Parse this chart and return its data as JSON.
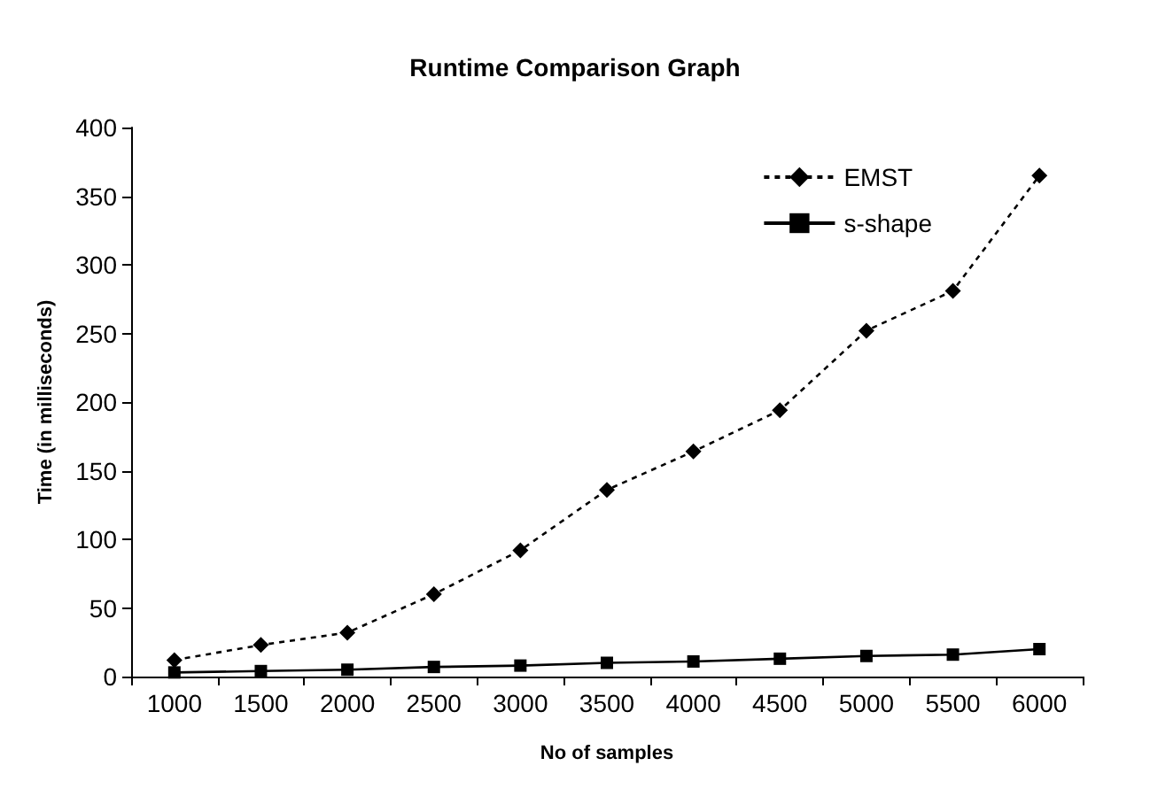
{
  "chart_data": {
    "type": "line",
    "title": "Runtime Comparison Graph",
    "xlabel": "No of samples",
    "ylabel": "Time (in milliseconds)",
    "categories": [
      "1000",
      "1500",
      "2000",
      "2500",
      "3000",
      "3500",
      "4000",
      "4500",
      "5000",
      "5500",
      "6000"
    ],
    "series": [
      {
        "name": "EMST",
        "color": "#000000",
        "marker": "diamond",
        "line_style": "dotted",
        "values": [
          12,
          23,
          32,
          60,
          92,
          136,
          164,
          194,
          252,
          281,
          365
        ]
      },
      {
        "name": "s-shape",
        "color": "#000000",
        "marker": "square",
        "line_style": "solid",
        "values": [
          3,
          4,
          5,
          7,
          8,
          10,
          11,
          13,
          15,
          16,
          20
        ]
      }
    ],
    "ylim": [
      0,
      400
    ],
    "yticks": [
      0,
      50,
      100,
      150,
      200,
      250,
      300,
      350,
      400
    ],
    "grid": false,
    "legend": "top right"
  }
}
